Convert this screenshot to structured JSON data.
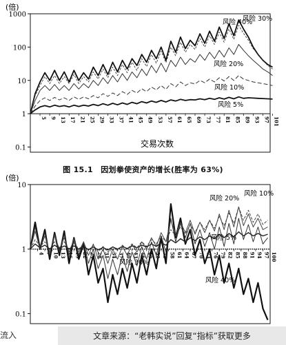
{
  "caption": "图 15.1　因划拳使资产的增长(胜率为 63%)",
  "footer_left": "流入",
  "footer_text": "文章来源：“老韩实说”回复“指标”获取更多",
  "chart_data": [
    {
      "type": "line",
      "ylabel": "(倍)",
      "xlabel": "交易次数",
      "yscale": "log",
      "ylim": [
        0.07,
        1000
      ],
      "yticks": [
        "0.1",
        "1",
        "10",
        "100",
        "1000"
      ],
      "xlim": [
        1,
        100
      ],
      "xticks": [
        5,
        9,
        13,
        17,
        21,
        25,
        29,
        33,
        37,
        41,
        45,
        49,
        53,
        57,
        61,
        65,
        69,
        73,
        77,
        81,
        85,
        89,
        93,
        97,
        101
      ],
      "grid": false,
      "series": [
        {
          "name": "风险 40%",
          "x": [
            1,
            3,
            5,
            7,
            9,
            11,
            13,
            15,
            17,
            19,
            21,
            23,
            25,
            27,
            29,
            31,
            33,
            35,
            37,
            39,
            41,
            43,
            45,
            47,
            49,
            51,
            53,
            55,
            57,
            59,
            61,
            63,
            65,
            67,
            69,
            71,
            73,
            75,
            77,
            79,
            81,
            83,
            85,
            87,
            89,
            91,
            93,
            95,
            97,
            99,
            101
          ],
          "values": [
            1,
            4,
            9,
            17,
            10,
            20,
            10,
            18,
            9,
            20,
            10,
            17,
            11,
            25,
            14,
            30,
            15,
            35,
            18,
            40,
            22,
            45,
            28,
            60,
            35,
            80,
            45,
            100,
            40,
            150,
            70,
            200,
            90,
            160,
            110,
            250,
            130,
            300,
            150,
            400,
            180,
            500,
            220,
            650,
            350,
            200,
            100,
            60,
            40,
            30,
            25
          ]
        },
        {
          "name": "风险 30%",
          "x": [
            1,
            3,
            5,
            7,
            9,
            11,
            13,
            15,
            17,
            19,
            21,
            23,
            25,
            27,
            29,
            31,
            33,
            35,
            37,
            39,
            41,
            43,
            45,
            47,
            49,
            51,
            53,
            55,
            57,
            59,
            61,
            63,
            65,
            67,
            69,
            71,
            73,
            75,
            77,
            79,
            81,
            83,
            85,
            87,
            89,
            91,
            93,
            95,
            97,
            99,
            101
          ],
          "values": [
            1,
            3.5,
            7,
            13,
            8,
            14,
            8,
            13,
            8,
            15,
            8,
            13,
            9,
            18,
            11,
            22,
            12,
            25,
            14,
            30,
            17,
            35,
            20,
            45,
            26,
            60,
            33,
            75,
            34,
            100,
            55,
            140,
            70,
            120,
            85,
            180,
            100,
            220,
            120,
            280,
            140,
            350,
            170,
            450,
            260,
            160,
            90,
            60,
            40,
            28,
            22
          ]
        },
        {
          "name": "风险 20%",
          "x": [
            1,
            3,
            5,
            7,
            9,
            11,
            13,
            15,
            17,
            19,
            21,
            23,
            25,
            27,
            29,
            31,
            33,
            35,
            37,
            39,
            41,
            43,
            45,
            47,
            49,
            51,
            53,
            55,
            57,
            59,
            61,
            63,
            65,
            67,
            69,
            71,
            73,
            75,
            77,
            79,
            81,
            83,
            85,
            87,
            89,
            91,
            93,
            95,
            97,
            99,
            101
          ],
          "values": [
            1,
            2.5,
            5,
            7,
            5,
            7.5,
            5,
            7,
            5,
            8,
            5.5,
            8,
            6,
            10,
            7,
            12,
            8,
            14,
            9,
            16,
            10,
            18,
            12,
            22,
            14,
            28,
            17,
            33,
            18,
            40,
            26,
            50,
            30,
            45,
            35,
            60,
            40,
            70,
            45,
            80,
            50,
            95,
            60,
            120,
            80,
            55,
            40,
            30,
            22,
            18,
            14
          ]
        },
        {
          "name": "风险 10%",
          "x": [
            1,
            3,
            5,
            7,
            9,
            11,
            13,
            15,
            17,
            19,
            21,
            23,
            25,
            27,
            29,
            31,
            33,
            35,
            37,
            39,
            41,
            43,
            45,
            47,
            49,
            51,
            53,
            55,
            57,
            59,
            61,
            63,
            65,
            67,
            69,
            71,
            73,
            75,
            77,
            79,
            81,
            83,
            85,
            87,
            89,
            91,
            93,
            95,
            97,
            99,
            101
          ],
          "values": [
            1,
            1.7,
            2.5,
            3,
            2.5,
            3.1,
            2.6,
            3,
            2.5,
            3.2,
            2.7,
            3.2,
            2.8,
            3.5,
            3,
            4,
            3.3,
            4.2,
            3.5,
            4.6,
            3.8,
            5,
            4.2,
            5.6,
            4.6,
            6.3,
            5.2,
            7,
            5.4,
            8,
            6.4,
            9,
            7,
            8.5,
            7.8,
            10,
            8.5,
            11,
            9,
            12,
            9.6,
            13,
            10,
            14,
            11,
            10,
            9,
            8.5,
            8,
            7.5,
            7
          ]
        },
        {
          "name": "风险 5%",
          "x": [
            1,
            3,
            5,
            7,
            9,
            11,
            13,
            15,
            17,
            19,
            21,
            23,
            25,
            27,
            29,
            31,
            33,
            35,
            37,
            39,
            41,
            43,
            45,
            47,
            49,
            51,
            53,
            55,
            57,
            59,
            61,
            63,
            65,
            67,
            69,
            71,
            73,
            75,
            77,
            79,
            81,
            83,
            85,
            87,
            89,
            91,
            93,
            95,
            97,
            99,
            101
          ],
          "values": [
            1,
            1.3,
            1.6,
            1.75,
            1.6,
            1.8,
            1.65,
            1.75,
            1.6,
            1.8,
            1.65,
            1.8,
            1.7,
            1.9,
            1.75,
            2,
            1.8,
            2.05,
            1.85,
            2.1,
            1.9,
            2.2,
            2,
            2.3,
            2.1,
            2.4,
            2.2,
            2.5,
            2.25,
            2.6,
            2.4,
            2.7,
            2.5,
            2.65,
            2.6,
            2.8,
            2.65,
            2.9,
            2.7,
            3,
            2.75,
            3.1,
            2.8,
            3.2,
            2.9,
            3,
            2.95,
            2.9,
            2.85,
            2.8,
            2.75
          ]
        }
      ]
    },
    {
      "type": "line",
      "ylabel": "(倍)",
      "xlabel": "",
      "yscale": "log",
      "ylim": [
        0.07,
        10
      ],
      "yticks": [
        "0.1",
        "1",
        "10"
      ],
      "xlim": [
        1,
        100
      ],
      "xticks": [
        4,
        7,
        10,
        13,
        16,
        19,
        22,
        25,
        28,
        31,
        34,
        37,
        40,
        43,
        46,
        49,
        52,
        55,
        58,
        61,
        64,
        67,
        70,
        73,
        76,
        79,
        82,
        85,
        88,
        91,
        94,
        97,
        100
      ],
      "grid": false,
      "series": [
        {
          "name": "风险 40%",
          "x": [
            1,
            3,
            5,
            7,
            9,
            11,
            13,
            15,
            17,
            19,
            21,
            23,
            25,
            27,
            29,
            31,
            33,
            35,
            37,
            39,
            41,
            43,
            45,
            47,
            49,
            51,
            53,
            55,
            57,
            59,
            61,
            63,
            65,
            67,
            69,
            71,
            73,
            75,
            77,
            79,
            81,
            83,
            85,
            87,
            89,
            91,
            93,
            95,
            97,
            99
          ],
          "values": [
            1,
            2.6,
            1,
            2,
            0.7,
            1.8,
            0.8,
            1.9,
            0.6,
            1.5,
            0.7,
            1.2,
            0.4,
            0.8,
            0.3,
            0.5,
            0.15,
            0.4,
            0.2,
            0.5,
            0.25,
            0.6,
            0.3,
            0.8,
            0.4,
            1,
            0.5,
            1.5,
            0.6,
            5,
            1.5,
            3,
            1.2,
            2,
            0.8,
            1.4,
            0.6,
            1,
            0.4,
            0.8,
            0.3,
            0.6,
            0.25,
            0.5,
            0.2,
            0.35,
            0.15,
            0.3,
            0.12,
            0.08
          ]
        },
        {
          "name": "风险 30%",
          "x": [
            1,
            3,
            5,
            7,
            9,
            11,
            13,
            15,
            17,
            19,
            21,
            23,
            25,
            27,
            29,
            31,
            33,
            35,
            37,
            39,
            41,
            43,
            45,
            47,
            49,
            51,
            53,
            55,
            57,
            59,
            61,
            63,
            65,
            67,
            69,
            71,
            73,
            75,
            77,
            79,
            81,
            83,
            85,
            87,
            89,
            91,
            93,
            95,
            97,
            99
          ],
          "values": [
            1,
            2.2,
            1,
            1.8,
            0.8,
            1.7,
            0.9,
            1.7,
            0.8,
            1.5,
            0.8,
            1.3,
            0.6,
            1,
            0.5,
            0.8,
            0.35,
            0.7,
            0.4,
            0.8,
            0.45,
            0.9,
            0.55,
            1.1,
            0.7,
            1.3,
            0.8,
            1.6,
            0.9,
            3,
            1.3,
            2.5,
            1.5,
            2.5,
            1.2,
            2,
            1.1,
            1.8,
            1,
            2.2,
            1.1,
            2.5,
            1.2,
            3,
            1.4,
            2.4,
            1.3,
            2.2,
            1.2,
            1.5
          ]
        },
        {
          "name": "风险 20%",
          "x": [
            1,
            3,
            5,
            7,
            9,
            11,
            13,
            15,
            17,
            19,
            21,
            23,
            25,
            27,
            29,
            31,
            33,
            35,
            37,
            39,
            41,
            43,
            45,
            47,
            49,
            51,
            53,
            55,
            57,
            59,
            61,
            63,
            65,
            67,
            69,
            71,
            73,
            75,
            77,
            79,
            81,
            83,
            85,
            87,
            89,
            91,
            93,
            95,
            97,
            99
          ],
          "values": [
            1,
            1.9,
            1,
            1.6,
            0.9,
            1.6,
            1,
            1.5,
            0.9,
            1.4,
            0.9,
            1.3,
            0.8,
            1.2,
            0.7,
            1,
            0.6,
            1,
            0.7,
            1.1,
            0.8,
            1.2,
            0.9,
            1.3,
            1,
            1.5,
            1.1,
            1.8,
            1.3,
            2.8,
            1.7,
            2.6,
            1.8,
            2.8,
            1.7,
            2.6,
            1.8,
            2.8,
            1.9,
            3.5,
            2,
            4,
            2.2,
            4.5,
            2.3,
            3.5,
            2.2,
            3,
            2,
            2.2
          ]
        },
        {
          "name": "风险 10%",
          "x": [
            1,
            3,
            5,
            7,
            9,
            11,
            13,
            15,
            17,
            19,
            21,
            23,
            25,
            27,
            29,
            31,
            33,
            35,
            37,
            39,
            41,
            43,
            45,
            47,
            49,
            51,
            53,
            55,
            57,
            59,
            61,
            63,
            65,
            67,
            69,
            71,
            73,
            75,
            77,
            79,
            81,
            83,
            85,
            87,
            89,
            91,
            93,
            95,
            97,
            99
          ],
          "values": [
            1,
            1.4,
            1.1,
            1.3,
            1,
            1.3,
            1.05,
            1.3,
            1,
            1.25,
            1,
            1.2,
            0.95,
            1.15,
            0.9,
            1.1,
            0.9,
            1.1,
            0.95,
            1.15,
            1,
            1.2,
            1.05,
            1.3,
            1.1,
            1.4,
            1.2,
            1.6,
            1.3,
            2,
            1.6,
            2.2,
            1.7,
            2.4,
            1.8,
            2.6,
            2,
            2.8,
            2.1,
            3.2,
            2.3,
            3.6,
            2.5,
            4.5,
            2.8,
            4,
            2.6,
            3.5,
            2.4,
            2.8
          ]
        },
        {
          "name": "风险 5%",
          "x": [
            1,
            3,
            5,
            7,
            9,
            11,
            13,
            15,
            17,
            19,
            21,
            23,
            25,
            27,
            29,
            31,
            33,
            35,
            37,
            39,
            41,
            43,
            45,
            47,
            49,
            51,
            53,
            55,
            57,
            59,
            61,
            63,
            65,
            67,
            69,
            71,
            73,
            75,
            77,
            79,
            81,
            83,
            85,
            87,
            89,
            91,
            93,
            95,
            97,
            99
          ],
          "values": [
            1,
            1.2,
            1.05,
            1.15,
            1,
            1.15,
            1.02,
            1.12,
            1,
            1.12,
            1,
            1.1,
            0.98,
            1.08,
            0.97,
            1.06,
            0.97,
            1.08,
            1,
            1.1,
            1.02,
            1.12,
            1.05,
            1.15,
            1.08,
            1.2,
            1.1,
            1.25,
            1.15,
            1.4,
            1.25,
            1.45,
            1.3,
            1.5,
            1.35,
            1.55,
            1.4,
            1.6,
            1.45,
            1.7,
            1.5,
            1.75,
            1.55,
            1.85,
            1.6,
            1.8,
            1.6,
            1.75,
            1.6,
            1.7
          ]
        }
      ]
    }
  ]
}
